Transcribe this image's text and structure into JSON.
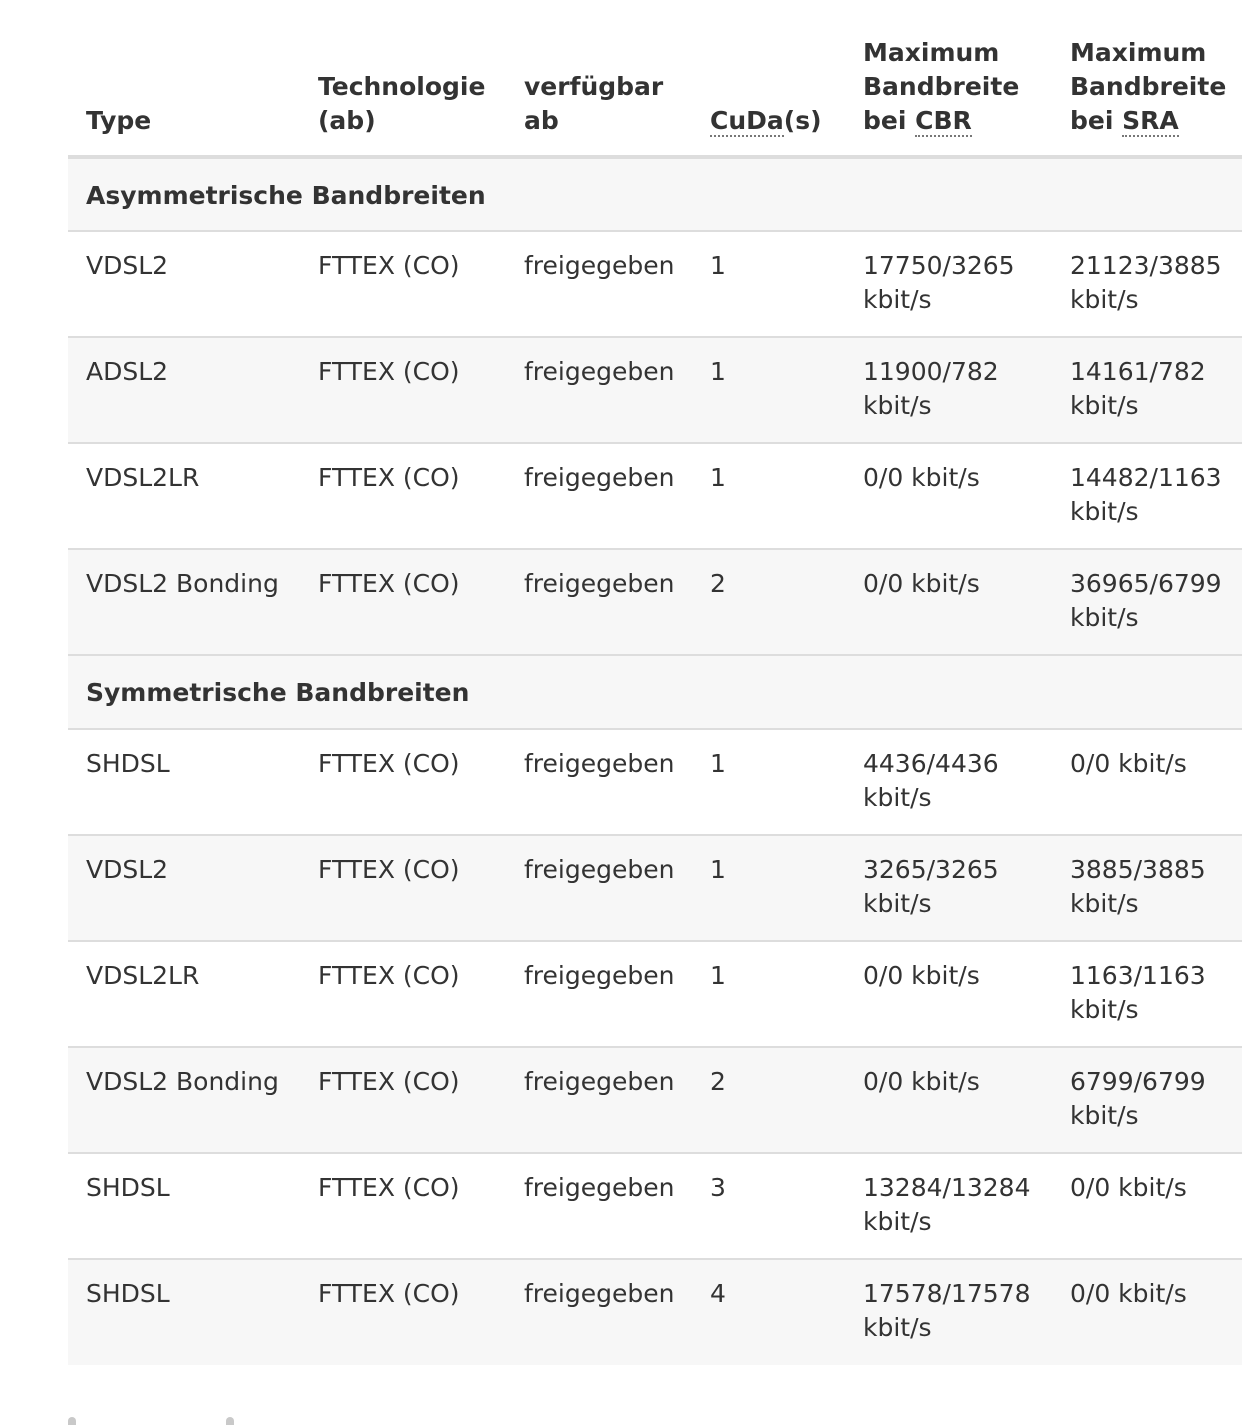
{
  "table": {
    "headers": {
      "type": "Type",
      "tech_line1": "Technologie",
      "tech_line2": "(ab)",
      "avail_line1": "verfügbar",
      "avail_line2": "ab",
      "cuda_abbr": "CuDa",
      "cuda_suffix": "(s)",
      "cbr_line1": "Maximum",
      "cbr_line2": "Bandbreite",
      "cbr_prefix": "bei ",
      "cbr_abbr": "CBR",
      "sra_line1": "Maximum",
      "sra_line2": "Bandbreite",
      "sra_prefix": "bei ",
      "sra_abbr": "SRA"
    },
    "sections": [
      {
        "title": "Asymmetrische Bandbreiten",
        "rows": [
          {
            "type": "VDSL2",
            "technology": "FTTEX (CO)",
            "available": "freigegeben",
            "cuda": "1",
            "cbr_line1": "17750/3265",
            "cbr_line2": "kbit/s",
            "sra_line1": "21123/3885",
            "sra_line2": "kbit/s"
          },
          {
            "type": "ADSL2",
            "technology": "FTTEX (CO)",
            "available": "freigegeben",
            "cuda": "1",
            "cbr_line1": "11900/782",
            "cbr_line2": "kbit/s",
            "sra_line1": "14161/782",
            "sra_line2": "kbit/s"
          },
          {
            "type": "VDSL2LR",
            "technology": "FTTEX (CO)",
            "available": "freigegeben",
            "cuda": "1",
            "cbr_line1": "0/0 kbit/s",
            "cbr_line2": "",
            "sra_line1": "14482/1163",
            "sra_line2": "kbit/s"
          },
          {
            "type": "VDSL2 Bonding",
            "technology": "FTTEX (CO)",
            "available": "freigegeben",
            "cuda": "2",
            "cbr_line1": "0/0 kbit/s",
            "cbr_line2": "",
            "sra_line1": "36965/6799",
            "sra_line2": "kbit/s"
          }
        ]
      },
      {
        "title": "Symmetrische Bandbreiten",
        "rows": [
          {
            "type": "SHDSL",
            "technology": "FTTEX (CO)",
            "available": "freigegeben",
            "cuda": "1",
            "cbr_line1": "4436/4436",
            "cbr_line2": "kbit/s",
            "sra_line1": "0/0 kbit/s",
            "sra_line2": ""
          },
          {
            "type": "VDSL2",
            "technology": "FTTEX (CO)",
            "available": "freigegeben",
            "cuda": "1",
            "cbr_line1": "3265/3265",
            "cbr_line2": "kbit/s",
            "sra_line1": "3885/3885",
            "sra_line2": "kbit/s"
          },
          {
            "type": "VDSL2LR",
            "technology": "FTTEX (CO)",
            "available": "freigegeben",
            "cuda": "1",
            "cbr_line1": "0/0 kbit/s",
            "cbr_line2": "",
            "sra_line1": "1163/1163",
            "sra_line2": "kbit/s"
          },
          {
            "type": "VDSL2 Bonding",
            "technology": "FTTEX (CO)",
            "available": "freigegeben",
            "cuda": "2",
            "cbr_line1": "0/0 kbit/s",
            "cbr_line2": "",
            "sra_line1": "6799/6799",
            "sra_line2": "kbit/s"
          },
          {
            "type": "SHDSL",
            "technology": "FTTEX (CO)",
            "available": "freigegeben",
            "cuda": "3",
            "cbr_line1": "13284/13284",
            "cbr_line2": "kbit/s",
            "sra_line1": "0/0 kbit/s",
            "sra_line2": ""
          },
          {
            "type": "SHDSL",
            "technology": "FTTEX (CO)",
            "available": "freigegeben",
            "cuda": "4",
            "cbr_line1": "17578/17578",
            "cbr_line2": "kbit/s",
            "sra_line1": "0/0 kbit/s",
            "sra_line2": ""
          }
        ]
      }
    ]
  }
}
